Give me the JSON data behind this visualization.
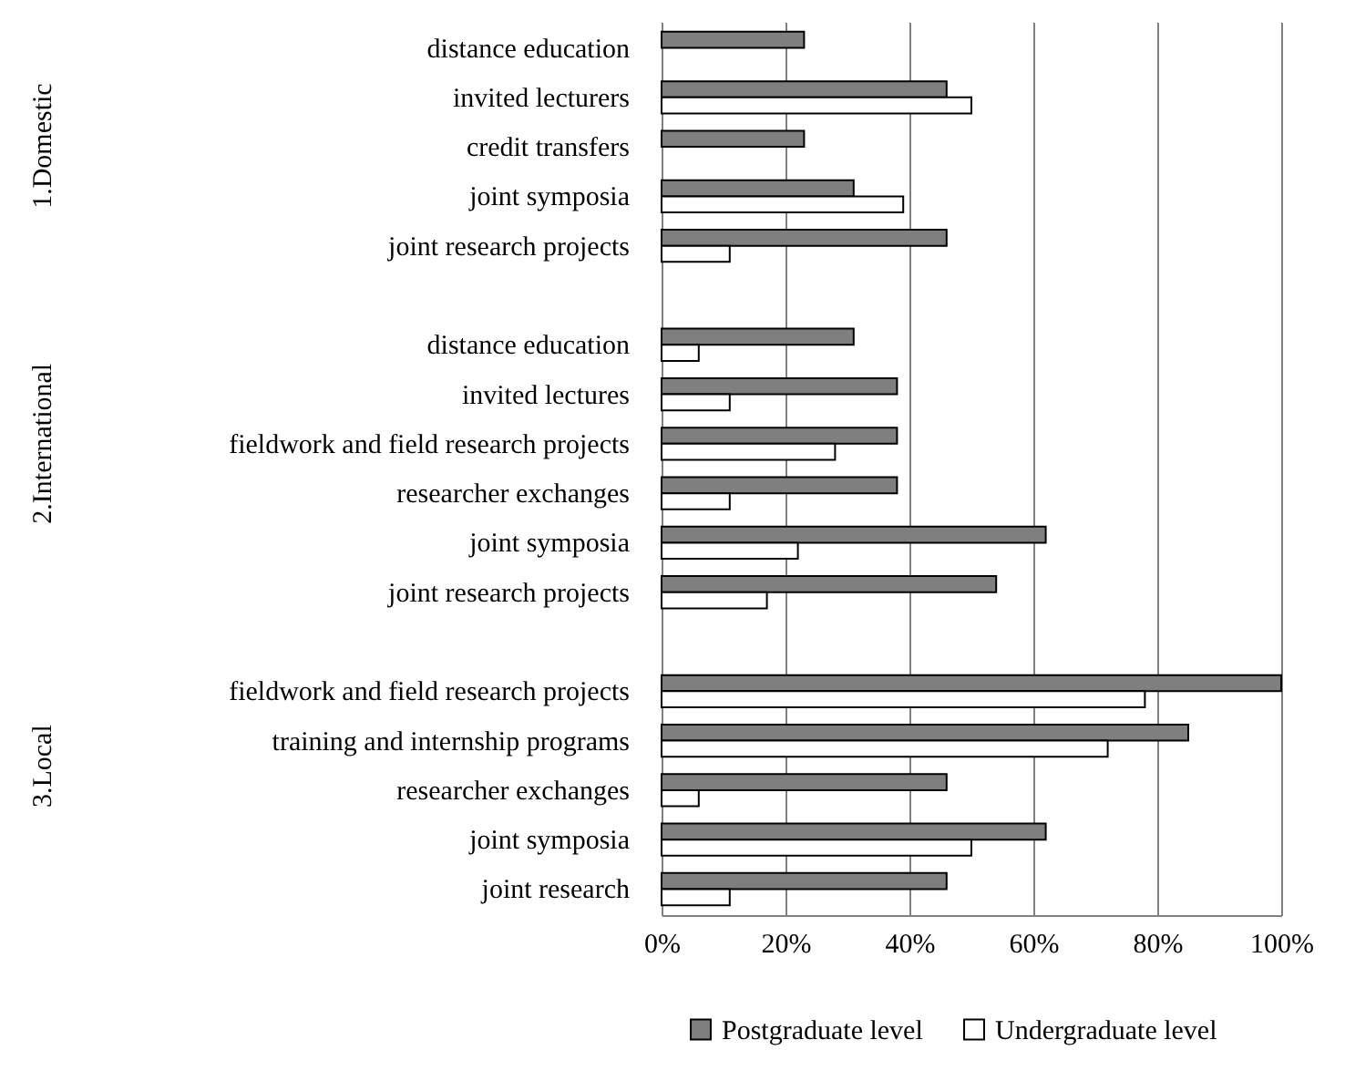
{
  "chart_data": {
    "type": "bar",
    "orientation": "horizontal",
    "categories": [
      "distance education",
      "invited lecturers",
      "credit transfers",
      "joint symposia",
      "joint research projects",
      null,
      "distance education",
      "invited lectures",
      "fieldwork and field research projects",
      "researcher exchanges",
      "joint symposia",
      "joint research projects",
      null,
      "fieldwork and field research projects",
      "training and internship programs",
      "researcher exchanges",
      "joint symposia",
      "joint research"
    ],
    "series": [
      {
        "name": "Postgraduate level",
        "color": "#7f7f7f",
        "values": [
          23,
          46,
          23,
          31,
          46,
          null,
          31,
          38,
          38,
          38,
          62,
          54,
          null,
          100,
          85,
          46,
          62,
          46
        ]
      },
      {
        "name": "Undergraduate level",
        "color": "#ffffff",
        "values": [
          null,
          50,
          null,
          39,
          11,
          null,
          6,
          11,
          28,
          11,
          22,
          17,
          null,
          78,
          72,
          6,
          50,
          11
        ]
      }
    ],
    "xlim": [
      0,
      100
    ],
    "xticks": [
      {
        "value": 0,
        "label": "0%"
      },
      {
        "value": 20,
        "label": "20%"
      },
      {
        "value": 40,
        "label": "40%"
      },
      {
        "value": 60,
        "label": "60%"
      },
      {
        "value": 80,
        "label": "80%"
      },
      {
        "value": 100,
        "label": "100%"
      }
    ],
    "annotations": [
      "1.Domestic",
      "2.International",
      "3.Local"
    ],
    "grid": "x",
    "legend": "bottom"
  }
}
